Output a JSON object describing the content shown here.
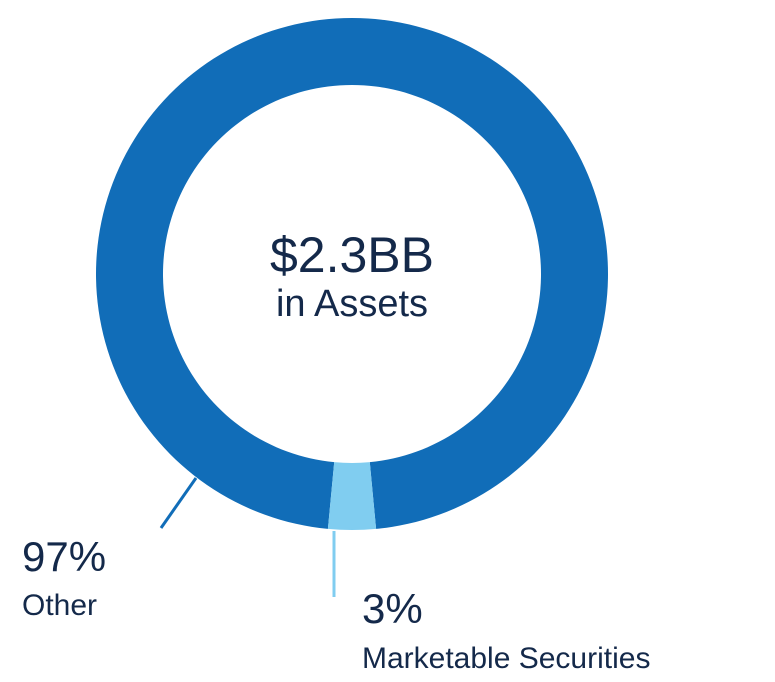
{
  "chart_data": {
    "type": "pie",
    "variant": "donut",
    "center_value": "$2.3BB",
    "center_subtitle": "in Assets",
    "slices": [
      {
        "percent_label": "97%",
        "label": "Other",
        "value": 97,
        "color": "#116db8"
      },
      {
        "percent_label": "3%",
        "label": "Marketable Securities",
        "value": 3,
        "color": "#80cdf0"
      }
    ],
    "legend": "none"
  }
}
